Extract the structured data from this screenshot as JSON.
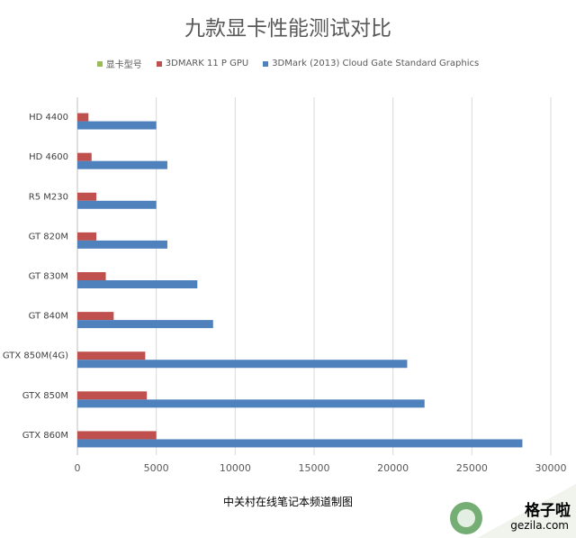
{
  "chart_data": {
    "type": "bar",
    "orientation": "horizontal",
    "title": "九款显卡性能测试对比",
    "categories": [
      "HD 4400",
      "HD 4600",
      "R5 M230",
      "GT 820M",
      "GT 830M",
      "GT 840M",
      "GTX 850M(4G)",
      "GTX 850M",
      "GTX 860M"
    ],
    "series": [
      {
        "name": "显卡型号",
        "color": "#9BBB59",
        "values": [
          0,
          0,
          0,
          0,
          0,
          0,
          0,
          0,
          0
        ]
      },
      {
        "name": "3DMARK 11 P GPU",
        "color": "#C0504D",
        "values": [
          700,
          900,
          1200,
          1200,
          1800,
          2300,
          4300,
          4400,
          5000
        ]
      },
      {
        "name": "3DMark (2013) Cloud Gate Standard Graphics",
        "color": "#4F81BD",
        "values": [
          5000,
          5700,
          5000,
          5700,
          7600,
          8600,
          20900,
          22000,
          28200
        ]
      }
    ],
    "xlim": [
      0,
      30000
    ],
    "xticks": [
      "0",
      "5000",
      "10000",
      "15000",
      "20000",
      "25000",
      "30000"
    ],
    "grid": true,
    "legend": "top"
  },
  "footer_text": "中关村在线笔记本频道制图",
  "watermark": {
    "title": "格子啦",
    "url": "gezila.com"
  }
}
